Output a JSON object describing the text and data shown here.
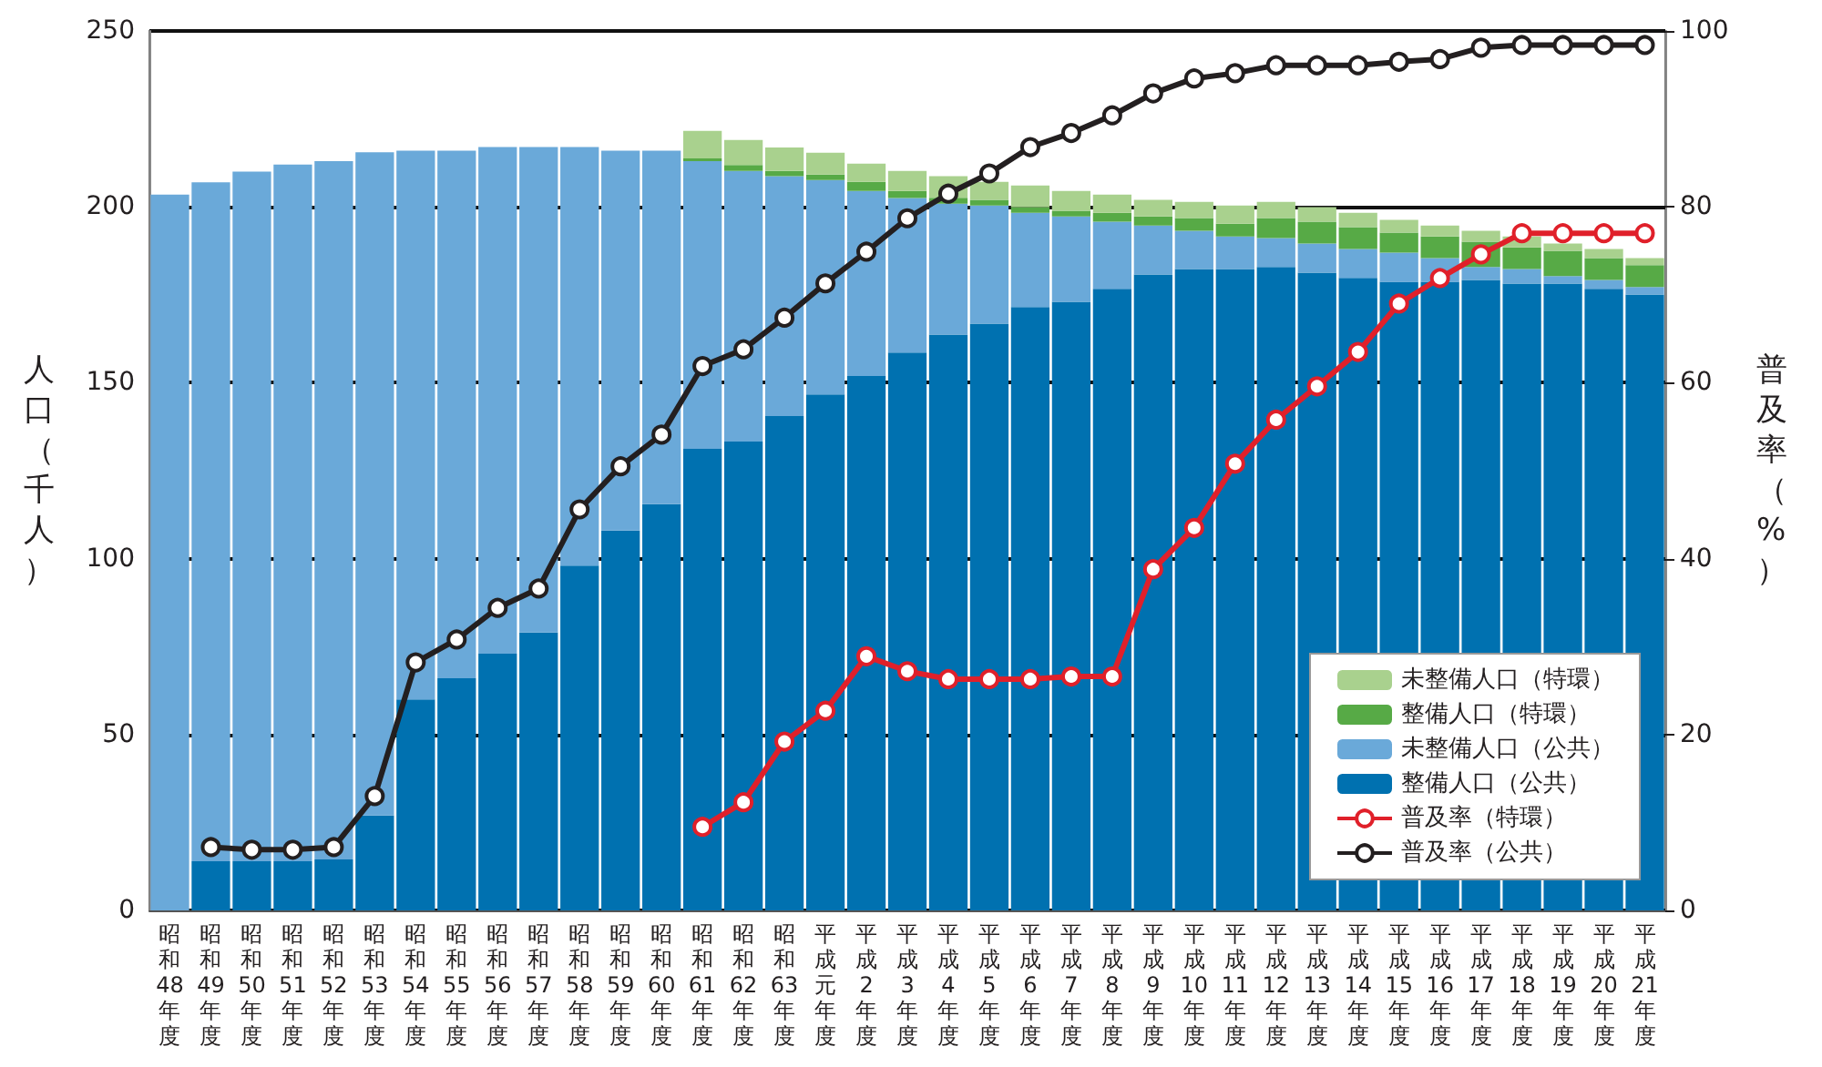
{
  "chart_data": {
    "type": "bar",
    "stacked": true,
    "categories": [
      "昭和48年度",
      "昭和49年度",
      "昭和50年度",
      "昭和51年度",
      "昭和52年度",
      "昭和53年度",
      "昭和54年度",
      "昭和55年度",
      "昭和56年度",
      "昭和57年度",
      "昭和58年度",
      "昭和59年度",
      "昭和60年度",
      "昭和61年度",
      "昭和62年度",
      "昭和63年度",
      "平成元年度",
      "平成2年度",
      "平成3年度",
      "平成4年度",
      "平成5年度",
      "平成6年度",
      "平成7年度",
      "平成8年度",
      "平成9年度",
      "平成10年度",
      "平成11年度",
      "平成12年度",
      "平成13年度",
      "平成14年度",
      "平成15年度",
      "平成16年度",
      "平成17年度",
      "平成18年度",
      "平成19年度",
      "平成20年度",
      "平成21年度"
    ],
    "ylabel": "人口（千人）",
    "y2label": "普及率（%）",
    "ylim": [
      0,
      250
    ],
    "yticks": [
      0,
      50,
      100,
      150,
      200,
      250
    ],
    "y2lim": [
      0,
      100
    ],
    "y2ticks": [
      0,
      20,
      40,
      60,
      80,
      100
    ],
    "grid": "y",
    "legend": "bottom right",
    "marker": "circle",
    "series": [
      {
        "name": "整備人口（公共）",
        "color": "#0071b0",
        "values": [
          0,
          14,
          14,
          14,
          14.5,
          27,
          60,
          66,
          73,
          79,
          98,
          108,
          115.5,
          131.2,
          133.3,
          140.5,
          146.7,
          151.9,
          158.6,
          163.7,
          166.8,
          171.5,
          173,
          176.7,
          180.8,
          182.3,
          182.3,
          182.9,
          181.3,
          179.8,
          178.7,
          178.7,
          179.2,
          178.2,
          178.2,
          176.7,
          175.1
        ]
      },
      {
        "name": "未整備人口（公共）",
        "color": "#6aa9d9",
        "values": [
          203.5,
          193,
          196,
          198,
          198.5,
          188.5,
          156,
          150,
          144,
          138,
          119,
          108,
          100.5,
          81.8,
          76.9,
          68.2,
          60.9,
          52.6,
          43.9,
          37.2,
          33.6,
          26.8,
          24.3,
          19.1,
          13.9,
          10.9,
          9.3,
          8.2,
          8.3,
          8.2,
          8.3,
          6.7,
          3.7,
          4.1,
          2.1,
          2.5,
          2.1
        ]
      },
      {
        "name": "整備人口（特環）",
        "color": "#57aa46",
        "values": [
          null,
          null,
          null,
          null,
          null,
          null,
          null,
          null,
          null,
          null,
          null,
          null,
          null,
          0.8,
          1.7,
          1.5,
          1.6,
          2.6,
          2,
          1.7,
          1.6,
          1.6,
          1.6,
          2.5,
          2.6,
          3.6,
          3.6,
          5.7,
          6.2,
          6.2,
          5.7,
          6.2,
          7.2,
          6.2,
          7.2,
          6.2,
          6.2
        ]
      },
      {
        "name": "未整備人口（特環）",
        "color": "#a9d18e",
        "values": [
          null,
          null,
          null,
          null,
          null,
          null,
          null,
          null,
          null,
          null,
          null,
          null,
          null,
          7.8,
          7.1,
          6.7,
          6.2,
          5.2,
          5.7,
          6.1,
          5.1,
          6.2,
          5.6,
          5.2,
          4.7,
          4.6,
          5.2,
          4.6,
          4.1,
          4.1,
          3.6,
          3.1,
          3.1,
          3.1,
          2.1,
          2.6,
          2
        ]
      },
      {
        "name": "普及率（特環）",
        "type": "line",
        "axis": "y2",
        "color": "#e0202a",
        "values": [
          null,
          null,
          null,
          null,
          null,
          null,
          null,
          null,
          null,
          null,
          null,
          null,
          null,
          9.5,
          12.3,
          19.2,
          22.7,
          28.9,
          27.2,
          26.3,
          26.3,
          26.3,
          26.6,
          26.6,
          38.8,
          43.5,
          50.8,
          55.8,
          59.6,
          63.5,
          69,
          71.9,
          74.6,
          77,
          77,
          77,
          77
        ]
      },
      {
        "name": "普及率（公共）",
        "type": "line",
        "axis": "y2",
        "color": "#231f20",
        "values": [
          null,
          7.2,
          6.9,
          6.9,
          7.2,
          13,
          28.2,
          30.8,
          34.4,
          36.6,
          45.6,
          50.5,
          54.1,
          61.9,
          63.8,
          67.4,
          71.3,
          74.9,
          78.7,
          81.5,
          83.8,
          86.8,
          88.4,
          90.4,
          92.9,
          94.6,
          95.2,
          96.1,
          96.1,
          96.1,
          96.5,
          96.8,
          98.1,
          98.4,
          98.4,
          98.4,
          98.4
        ]
      }
    ]
  }
}
